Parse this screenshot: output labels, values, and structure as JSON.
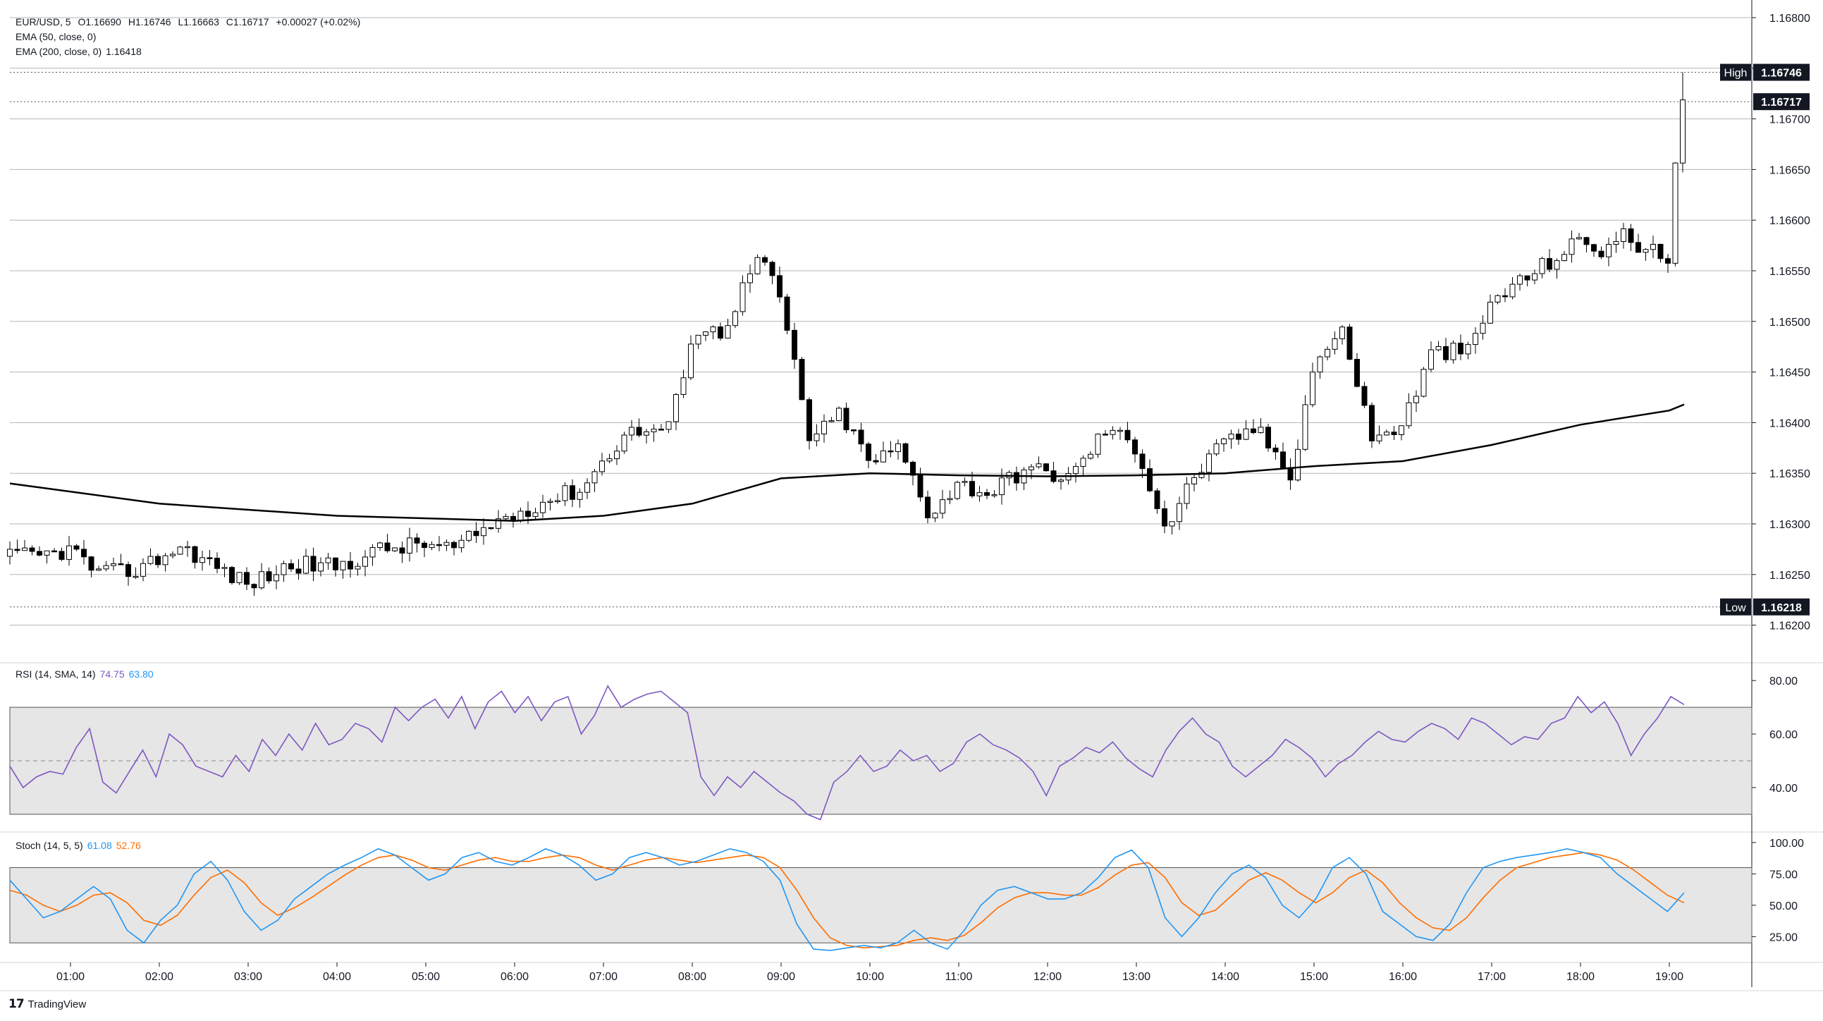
{
  "legend": {
    "symbol": "EUR/USD, 5",
    "o_label": "O",
    "open": "1.16690",
    "h_label": "H",
    "high": "1.16746",
    "l_label": "L",
    "low": "1.16663",
    "c_label": "C",
    "close": "1.16717",
    "change": "+0.00027 (+0.02%)",
    "ema50_label": "EMA (50, close, 0)",
    "ema200_label": "EMA (200, close, 0)",
    "ema200_value": "1.16418"
  },
  "rsi_legend": {
    "label": "RSI (14, SMA, 14)",
    "rsi": "74.75",
    "sma": "63.80"
  },
  "stoch_legend": {
    "label": "Stoch (14, 5, 5)",
    "k": "61.08",
    "d": "52.76"
  },
  "markers": {
    "high_label": "High",
    "high_value": "1.16746",
    "last_value": "1.16717",
    "low_label": "Low",
    "low_value": "1.16218"
  },
  "brand": {
    "name": "TradingView"
  },
  "colors": {
    "up": "#ffffff",
    "down": "#000000",
    "ema200": "#000000",
    "rsi": "#7e57c2",
    "rsi_sma": "#2196f3",
    "stoch_k": "#2196f3",
    "stoch_d": "#ff6d00",
    "band": "#e6e6e6"
  },
  "chart_data": [
    {
      "type": "candlestick",
      "title": "EUR/USD, 5",
      "x_ticks": [
        "01:00",
        "02:00",
        "03:00",
        "04:00",
        "05:00",
        "06:00",
        "07:00",
        "08:00",
        "09:00",
        "10:00",
        "11:00",
        "12:00",
        "13:00",
        "14:00",
        "15:00",
        "16:00",
        "17:00",
        "18:00",
        "19:00"
      ],
      "y_ticks": [
        "1.16800",
        "1.16750",
        "1.16700",
        "1.16650",
        "1.16600",
        "1.16550",
        "1.16500",
        "1.16450",
        "1.16400",
        "1.16350",
        "1.16300",
        "1.16250",
        "1.16200"
      ],
      "ylim": [
        1.16165,
        1.16825
      ],
      "series_anchor_points": [
        {
          "time": "00:40",
          "price": 1.16268
        },
        {
          "time": "01:00",
          "price": 1.16275
        },
        {
          "time": "01:20",
          "price": 1.1625
        },
        {
          "time": "01:45",
          "price": 1.16255
        },
        {
          "time": "02:15",
          "price": 1.16278
        },
        {
          "time": "02:45",
          "price": 1.16252
        },
        {
          "time": "03:00",
          "price": 1.1624
        },
        {
          "time": "03:30",
          "price": 1.1626
        },
        {
          "time": "04:00",
          "price": 1.16258
        },
        {
          "time": "04:30",
          "price": 1.16275
        },
        {
          "time": "05:00",
          "price": 1.1628
        },
        {
          "time": "05:20",
          "price": 1.16275
        },
        {
          "time": "05:45",
          "price": 1.163
        },
        {
          "time": "06:15",
          "price": 1.1632
        },
        {
          "time": "06:45",
          "price": 1.16335
        },
        {
          "time": "07:15",
          "price": 1.1639
        },
        {
          "time": "07:45",
          "price": 1.16395
        },
        {
          "time": "08:00",
          "price": 1.1649
        },
        {
          "time": "08:20",
          "price": 1.1649
        },
        {
          "time": "08:45",
          "price": 1.16565
        },
        {
          "time": "09:00",
          "price": 1.1652
        },
        {
          "time": "09:20",
          "price": 1.1638
        },
        {
          "time": "09:40",
          "price": 1.1641
        },
        {
          "time": "10:00",
          "price": 1.1636
        },
        {
          "time": "10:20",
          "price": 1.16375
        },
        {
          "time": "10:40",
          "price": 1.1631
        },
        {
          "time": "11:00",
          "price": 1.1634
        },
        {
          "time": "11:20",
          "price": 1.1633
        },
        {
          "time": "11:45",
          "price": 1.16355
        },
        {
          "time": "12:15",
          "price": 1.16345
        },
        {
          "time": "12:40",
          "price": 1.16395
        },
        {
          "time": "13:00",
          "price": 1.16375
        },
        {
          "time": "13:20",
          "price": 1.16295
        },
        {
          "time": "13:40",
          "price": 1.1635
        },
        {
          "time": "14:00",
          "price": 1.1638
        },
        {
          "time": "14:20",
          "price": 1.16395
        },
        {
          "time": "14:45",
          "price": 1.1635
        },
        {
          "time": "15:00",
          "price": 1.1646
        },
        {
          "time": "15:20",
          "price": 1.1649
        },
        {
          "time": "15:40",
          "price": 1.1638
        },
        {
          "time": "16:00",
          "price": 1.164
        },
        {
          "time": "16:20",
          "price": 1.1647
        },
        {
          "time": "16:45",
          "price": 1.1647
        },
        {
          "time": "17:00",
          "price": 1.1652
        },
        {
          "time": "17:20",
          "price": 1.1654
        },
        {
          "time": "17:40",
          "price": 1.1656
        },
        {
          "time": "18:00",
          "price": 1.1658
        },
        {
          "time": "18:15",
          "price": 1.1657
        },
        {
          "time": "18:30",
          "price": 1.16585
        },
        {
          "time": "18:45",
          "price": 1.1657
        },
        {
          "time": "19:00",
          "price": 1.1656
        },
        {
          "time": "19:05",
          "price": 1.1669
        },
        {
          "time": "19:10",
          "price": 1.16717
        }
      ],
      "ema200": [
        {
          "time": "00:00",
          "value": 1.1634
        },
        {
          "time": "02:00",
          "value": 1.1632
        },
        {
          "time": "04:00",
          "value": 1.16308
        },
        {
          "time": "06:00",
          "value": 1.16303
        },
        {
          "time": "07:00",
          "value": 1.16308
        },
        {
          "time": "08:00",
          "value": 1.1632
        },
        {
          "time": "09:00",
          "value": 1.16345
        },
        {
          "time": "10:00",
          "value": 1.1635
        },
        {
          "time": "11:00",
          "value": 1.16348
        },
        {
          "time": "12:00",
          "value": 1.16347
        },
        {
          "time": "13:00",
          "value": 1.16348
        },
        {
          "time": "14:00",
          "value": 1.1635
        },
        {
          "time": "15:00",
          "value": 1.16357
        },
        {
          "time": "16:00",
          "value": 1.16362
        },
        {
          "time": "17:00",
          "value": 1.16378
        },
        {
          "time": "18:00",
          "value": 1.16398
        },
        {
          "time": "19:00",
          "value": 1.16412
        },
        {
          "time": "19:10",
          "value": 1.16418
        }
      ],
      "high_line": 1.16746,
      "low_line": 1.16218,
      "last_price": 1.16717
    },
    {
      "type": "line",
      "title": "RSI (14, SMA, 14)",
      "y_ticks": [
        "80.00",
        "60.00",
        "40.00"
      ],
      "ylim": [
        26,
        84
      ],
      "band": [
        30,
        70
      ],
      "midline": 50,
      "series": [
        {
          "name": "RSI",
          "values": [
            48,
            40,
            44,
            46,
            45,
            55,
            62,
            42,
            38,
            46,
            54,
            44,
            60,
            56,
            48,
            46,
            44,
            52,
            46,
            58,
            52,
            60,
            54,
            64,
            56,
            58,
            64,
            62,
            57,
            70,
            65,
            70,
            73,
            66,
            74,
            62,
            72,
            76,
            68,
            74,
            65,
            72,
            74,
            60,
            67,
            78,
            70,
            73,
            75,
            76,
            72,
            68,
            44,
            37,
            44,
            40,
            46,
            42,
            38,
            35,
            30,
            28,
            42,
            46,
            52,
            46,
            48,
            54,
            50,
            52,
            46,
            49,
            57,
            60,
            56,
            54,
            51,
            46,
            37,
            48,
            51,
            55,
            53,
            57,
            51,
            47,
            44,
            54,
            61,
            66,
            60,
            57,
            48,
            44,
            48,
            52,
            58,
            55,
            51,
            44,
            49,
            52,
            57,
            61,
            58,
            57,
            61,
            64,
            62,
            58,
            66,
            64,
            60,
            56,
            59,
            58,
            64,
            66,
            74,
            68,
            72,
            64,
            52,
            60,
            66,
            74,
            71
          ]
        }
      ]
    },
    {
      "type": "line",
      "title": "Stoch (14, 5, 5)",
      "y_ticks": [
        "100.00",
        "75.00",
        "50.00",
        "25.00"
      ],
      "ylim": [
        10,
        105
      ],
      "band": [
        20,
        80
      ],
      "series": [
        {
          "name": "%K",
          "values": [
            70,
            55,
            40,
            45,
            55,
            65,
            55,
            30,
            20,
            38,
            50,
            75,
            85,
            70,
            45,
            30,
            38,
            55,
            65,
            75,
            82,
            88,
            95,
            90,
            80,
            70,
            75,
            88,
            92,
            85,
            82,
            88,
            95,
            90,
            82,
            70,
            75,
            88,
            92,
            88,
            82,
            85,
            90,
            95,
            92,
            85,
            70,
            35,
            15,
            14,
            16,
            18,
            16,
            20,
            30,
            20,
            15,
            30,
            50,
            62,
            65,
            60,
            55,
            55,
            60,
            72,
            88,
            94,
            80,
            40,
            25,
            40,
            60,
            75,
            82,
            72,
            50,
            40,
            55,
            80,
            88,
            75,
            45,
            35,
            25,
            22,
            35,
            60,
            80,
            85,
            88,
            90,
            92,
            95,
            92,
            88,
            75,
            65,
            55,
            45,
            60
          ]
        },
        {
          "name": "%D",
          "values": [
            62,
            58,
            50,
            45,
            50,
            58,
            60,
            52,
            38,
            34,
            42,
            58,
            72,
            78,
            68,
            52,
            42,
            48,
            56,
            65,
            74,
            82,
            88,
            90,
            86,
            80,
            78,
            82,
            86,
            88,
            85,
            85,
            88,
            90,
            88,
            82,
            78,
            82,
            86,
            88,
            86,
            84,
            86,
            88,
            90,
            88,
            80,
            62,
            40,
            24,
            18,
            16,
            17,
            18,
            22,
            24,
            22,
            26,
            36,
            48,
            56,
            60,
            60,
            58,
            58,
            64,
            74,
            82,
            84,
            72,
            52,
            42,
            46,
            58,
            70,
            76,
            70,
            60,
            52,
            60,
            72,
            78,
            68,
            52,
            40,
            32,
            30,
            40,
            56,
            70,
            80,
            84,
            88,
            90,
            92,
            90,
            86,
            78,
            68,
            58,
            52
          ]
        }
      ]
    }
  ]
}
